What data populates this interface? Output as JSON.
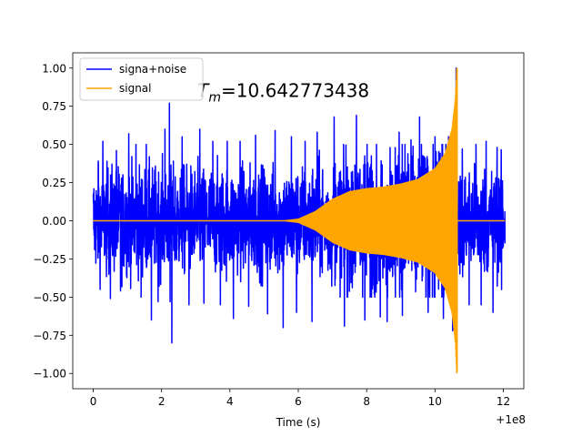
{
  "chart_data": {
    "type": "line",
    "title": "",
    "xlabel": "Time (s)",
    "ylabel": "",
    "x_offset_label": "+1e8",
    "xlim": [
      -0.6,
      12.6
    ],
    "ylim": [
      -1.1,
      1.1
    ],
    "x_ticks": [
      0,
      2,
      4,
      6,
      8,
      10,
      12
    ],
    "x_tick_labels": [
      "0",
      "2",
      "4",
      "6",
      "8",
      "10",
      "12"
    ],
    "y_ticks": [
      -1.0,
      -0.75,
      -0.5,
      -0.25,
      0.0,
      0.25,
      0.5,
      0.75,
      1.0
    ],
    "y_tick_labels": [
      "−1.00",
      "−0.75",
      "−0.50",
      "−0.25",
      "0.00",
      "0.25",
      "0.50",
      "0.75",
      "1.00"
    ],
    "grid": false,
    "legend_position": "top-left",
    "annotation": {
      "symbol": "T",
      "subscript": "m",
      "text": "=10.642773438",
      "x": 3.05,
      "y": 0.81
    },
    "series": [
      {
        "name": "signa+noise",
        "color": "#0000ff",
        "x_range": [
          0,
          12.05
        ],
        "typical_envelope": [
          -0.45,
          0.45
        ],
        "max": 1.0,
        "min": -0.88,
        "peak_time": 10.62,
        "spikes": [
          {
            "x": 0.15,
            "y": 0.37
          },
          {
            "x": 0.28,
            "y": 0.52
          },
          {
            "x": 0.5,
            "y": -0.51
          },
          {
            "x": 0.68,
            "y": 0.46
          },
          {
            "x": 0.8,
            "y": -0.46
          },
          {
            "x": 1.04,
            "y": 0.57
          },
          {
            "x": 1.25,
            "y": 0.5
          },
          {
            "x": 1.4,
            "y": -0.5
          },
          {
            "x": 1.55,
            "y": 0.5
          },
          {
            "x": 1.7,
            "y": -0.65
          },
          {
            "x": 1.9,
            "y": -0.53
          },
          {
            "x": 2.1,
            "y": 0.6
          },
          {
            "x": 2.23,
            "y": 0.77
          },
          {
            "x": 2.25,
            "y": -0.53
          },
          {
            "x": 2.3,
            "y": -0.8
          },
          {
            "x": 2.6,
            "y": 0.55
          },
          {
            "x": 2.8,
            "y": -0.55
          },
          {
            "x": 3.12,
            "y": 0.6
          },
          {
            "x": 3.24,
            "y": -0.54
          },
          {
            "x": 3.5,
            "y": 0.52
          },
          {
            "x": 3.72,
            "y": -0.55
          },
          {
            "x": 3.92,
            "y": 0.52
          },
          {
            "x": 4.1,
            "y": -0.64
          },
          {
            "x": 4.3,
            "y": 0.52
          },
          {
            "x": 4.55,
            "y": -0.56
          },
          {
            "x": 4.75,
            "y": 0.56
          },
          {
            "x": 5.1,
            "y": -0.61
          },
          {
            "x": 5.32,
            "y": 0.59
          },
          {
            "x": 5.56,
            "y": -0.7
          },
          {
            "x": 5.8,
            "y": 0.55
          },
          {
            "x": 5.95,
            "y": -0.6
          },
          {
            "x": 6.2,
            "y": 0.52
          },
          {
            "x": 6.4,
            "y": -0.66
          },
          {
            "x": 6.55,
            "y": 0.58
          },
          {
            "x": 7.05,
            "y": 0.68
          },
          {
            "x": 7.35,
            "y": -0.69
          },
          {
            "x": 7.7,
            "y": 0.69
          },
          {
            "x": 7.95,
            "y": -0.65
          },
          {
            "x": 8.4,
            "y": -0.63
          },
          {
            "x": 8.6,
            "y": -0.66
          },
          {
            "x": 8.95,
            "y": 0.58
          },
          {
            "x": 9.05,
            "y": -0.62
          },
          {
            "x": 9.3,
            "y": 0.53
          },
          {
            "x": 9.55,
            "y": 0.68
          },
          {
            "x": 9.8,
            "y": -0.6
          },
          {
            "x": 10.0,
            "y": 0.55
          },
          {
            "x": 10.25,
            "y": -0.64
          },
          {
            "x": 10.4,
            "y": 0.55
          },
          {
            "x": 10.52,
            "y": -0.72
          },
          {
            "x": 10.62,
            "y": 1.0
          },
          {
            "x": 10.64,
            "y": -0.88
          },
          {
            "x": 10.8,
            "y": 0.47
          },
          {
            "x": 11.0,
            "y": -0.55
          },
          {
            "x": 11.2,
            "y": 0.5
          },
          {
            "x": 11.35,
            "y": -0.55
          },
          {
            "x": 11.5,
            "y": 0.52
          },
          {
            "x": 11.7,
            "y": -0.6
          },
          {
            "x": 11.82,
            "y": 0.48
          },
          {
            "x": 11.95,
            "y": -0.45
          }
        ]
      },
      {
        "name": "signal",
        "color": "#ffa500",
        "x_range": [
          0,
          12.05
        ],
        "amplitude_envelope": [
          [
            0,
            0.0
          ],
          [
            5.6,
            0.0
          ],
          [
            6.0,
            0.01
          ],
          [
            6.5,
            0.06
          ],
          [
            7.0,
            0.14
          ],
          [
            7.5,
            0.19
          ],
          [
            8.0,
            0.21
          ],
          [
            8.5,
            0.22
          ],
          [
            9.0,
            0.24
          ],
          [
            9.5,
            0.27
          ],
          [
            10.0,
            0.34
          ],
          [
            10.3,
            0.44
          ],
          [
            10.5,
            0.6
          ],
          [
            10.6,
            0.8
          ],
          [
            10.64,
            1.0
          ]
        ],
        "max": 1.0,
        "min": -0.99,
        "merger_time": 10.642773438,
        "after_merger": 0.0
      }
    ]
  }
}
